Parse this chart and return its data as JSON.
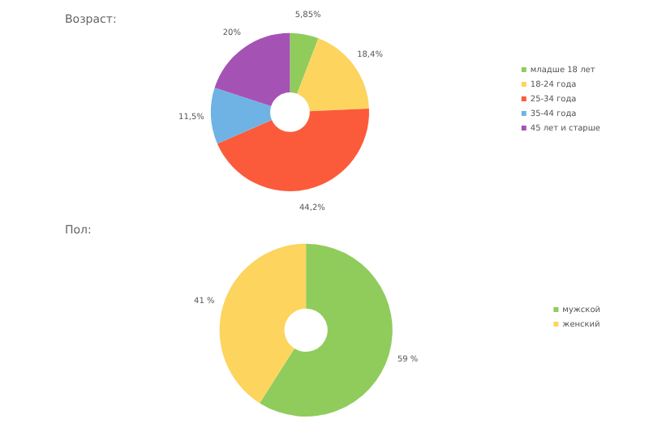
{
  "chart_data": [
    {
      "type": "donut",
      "title": "Возраст:",
      "categories": [
        "младше 18 лет",
        "18-24 года",
        "25-34 года",
        "35-44 года",
        "45 лет и старше"
      ],
      "values": [
        5.85,
        18.4,
        44.2,
        11.5,
        20
      ],
      "colors": [
        "#8fcc5c",
        "#fcd45e",
        "#fb5b3b",
        "#6eb3e4",
        "#a552b5"
      ],
      "value_labels": [
        "5,85%",
        "18,4%",
        "44,2%",
        "11,5%",
        "20%"
      ],
      "legend": "right"
    },
    {
      "type": "donut",
      "title": "Пол:",
      "categories": [
        "мужской",
        "женский"
      ],
      "values": [
        59,
        41
      ],
      "colors": [
        "#8fcc5c",
        "#fcd45e"
      ],
      "value_labels": [
        "59 %",
        "41 %"
      ],
      "legend": "right"
    }
  ]
}
